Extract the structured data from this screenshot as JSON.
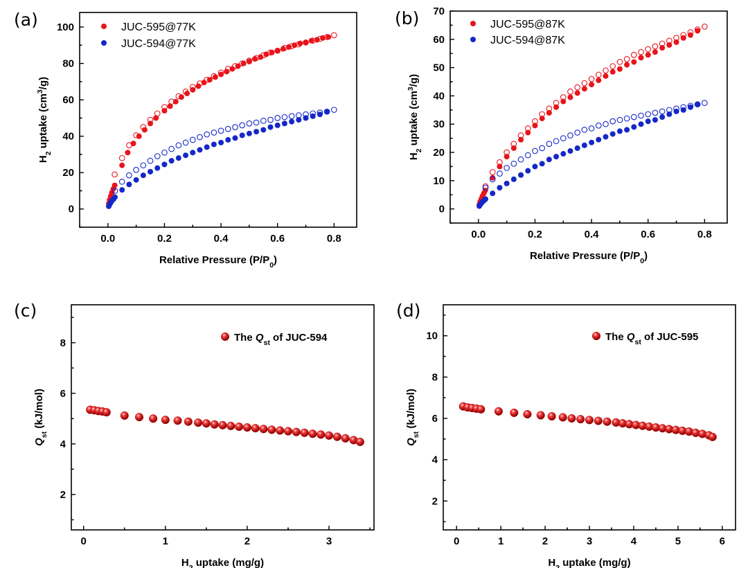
{
  "chart_data": [
    {
      "type": "scatter",
      "panel_label": "(a)",
      "xlabel": "Relative Pressure (P/P0)",
      "ylabel": "H2 uptake (cm3/g)",
      "xlim": [
        -0.1,
        0.88
      ],
      "ylim": [
        -10,
        108
      ],
      "xticks": [
        0.0,
        0.2,
        0.4,
        0.6,
        0.8
      ],
      "yticks": [
        0,
        20,
        40,
        60,
        80,
        100
      ],
      "tick_decimals": 1,
      "grid": false,
      "legend_position": "top-left",
      "series": [
        {
          "name": "JUC-595@77K",
          "color": "#e8141c",
          "marker": "filled-circle",
          "x": [
            0.003,
            0.006,
            0.01,
            0.014,
            0.019,
            0.024,
            0.05,
            0.07,
            0.09,
            0.11,
            0.13,
            0.15,
            0.17,
            0.2,
            0.22,
            0.24,
            0.26,
            0.28,
            0.3,
            0.32,
            0.34,
            0.36,
            0.38,
            0.4,
            0.42,
            0.44,
            0.46,
            0.48,
            0.5,
            0.52,
            0.54,
            0.56,
            0.58,
            0.6,
            0.62,
            0.64,
            0.66,
            0.68,
            0.7,
            0.72,
            0.74,
            0.76,
            0.78
          ],
          "y": [
            3,
            5,
            7,
            9,
            11,
            13,
            24,
            31,
            36,
            40,
            43.5,
            47,
            50,
            54,
            56.5,
            59,
            61.5,
            63.5,
            65.5,
            67.5,
            69.5,
            71,
            72.5,
            74,
            75.5,
            77,
            78.5,
            80,
            81,
            82.5,
            83.5,
            85,
            86,
            87,
            88,
            89,
            90,
            91,
            91.5,
            92.5,
            93,
            94,
            94.5
          ]
        },
        {
          "name": "",
          "color": "#e8141c",
          "marker": "open-circle",
          "x": [
            0.024,
            0.05,
            0.075,
            0.1,
            0.125,
            0.15,
            0.175,
            0.2,
            0.225,
            0.25,
            0.275,
            0.3,
            0.325,
            0.35,
            0.375,
            0.4,
            0.425,
            0.45,
            0.475,
            0.5,
            0.525,
            0.55,
            0.575,
            0.6,
            0.625,
            0.65,
            0.675,
            0.7,
            0.725,
            0.75,
            0.775,
            0.8
          ],
          "y": [
            19,
            28,
            35,
            40.5,
            45,
            49,
            52.5,
            56,
            59,
            62,
            64.5,
            67,
            69,
            71,
            73,
            75,
            77,
            78.5,
            80,
            81.5,
            83,
            84.5,
            86,
            87,
            88.5,
            89.5,
            90.5,
            91.5,
            92.5,
            93.5,
            94.5,
            95.5
          ]
        },
        {
          "name": "JUC-594@77K",
          "color": "#1428c8",
          "marker": "filled-circle",
          "x": [
            0.003,
            0.006,
            0.01,
            0.014,
            0.02,
            0.025,
            0.05,
            0.075,
            0.1,
            0.125,
            0.15,
            0.175,
            0.2,
            0.225,
            0.25,
            0.275,
            0.3,
            0.325,
            0.35,
            0.375,
            0.4,
            0.425,
            0.45,
            0.475,
            0.5,
            0.525,
            0.55,
            0.575,
            0.6,
            0.625,
            0.65,
            0.675,
            0.7,
            0.725,
            0.75,
            0.775
          ],
          "y": [
            1.5,
            2.5,
            3.5,
            4.5,
            5.5,
            6.5,
            10.5,
            13.5,
            16,
            18.5,
            20.5,
            22.5,
            24.5,
            26.5,
            28,
            29.5,
            31,
            32.5,
            34,
            35.5,
            36.5,
            38,
            39,
            40.5,
            41.5,
            42.5,
            43.5,
            45,
            46,
            47,
            48,
            49,
            50,
            51,
            52,
            53.5
          ]
        },
        {
          "name": "",
          "color": "#1428c8",
          "marker": "open-circle",
          "x": [
            0.025,
            0.05,
            0.075,
            0.1,
            0.125,
            0.15,
            0.175,
            0.2,
            0.225,
            0.25,
            0.275,
            0.3,
            0.325,
            0.35,
            0.375,
            0.4,
            0.425,
            0.45,
            0.475,
            0.5,
            0.525,
            0.55,
            0.575,
            0.6,
            0.625,
            0.65,
            0.675,
            0.7,
            0.725,
            0.75,
            0.775,
            0.8
          ],
          "y": [
            10,
            15,
            18.5,
            21.5,
            24,
            26.5,
            29,
            31,
            33,
            35,
            36.5,
            38,
            39.5,
            41,
            42,
            43,
            44,
            45,
            46,
            47,
            47.5,
            48.5,
            49,
            50,
            50.5,
            51,
            51.5,
            52,
            52.5,
            53,
            53.5,
            54.5
          ]
        }
      ]
    },
    {
      "type": "scatter",
      "panel_label": "(b)",
      "xlabel": "Relative Pressure (P/P0)",
      "ylabel": "H2 uptake (cm3/g)",
      "xlim": [
        -0.1,
        0.88
      ],
      "ylim": [
        -5,
        70
      ],
      "xticks": [
        0.0,
        0.2,
        0.4,
        0.6,
        0.8
      ],
      "yticks": [
        0,
        10,
        20,
        30,
        40,
        50,
        60,
        70
      ],
      "tick_decimals": 1,
      "grid": false,
      "legend_position": "top-left",
      "series": [
        {
          "name": "JUC-595@87K",
          "color": "#e8141c",
          "marker": "filled-circle",
          "x": [
            0.003,
            0.006,
            0.01,
            0.014,
            0.019,
            0.024,
            0.05,
            0.075,
            0.1,
            0.125,
            0.15,
            0.175,
            0.2,
            0.225,
            0.25,
            0.275,
            0.3,
            0.325,
            0.35,
            0.375,
            0.4,
            0.425,
            0.45,
            0.475,
            0.5,
            0.525,
            0.55,
            0.575,
            0.6,
            0.625,
            0.65,
            0.675,
            0.7,
            0.725,
            0.75,
            0.775
          ],
          "y": [
            1.5,
            2.5,
            3.5,
            4.5,
            5.5,
            6.5,
            11,
            15,
            18.5,
            21.5,
            24.5,
            27,
            29.5,
            32,
            34,
            36,
            38,
            39.5,
            41,
            42.5,
            44,
            45.5,
            47,
            48.5,
            49.5,
            51,
            52,
            53.5,
            54.5,
            55.5,
            57,
            58,
            59,
            60.5,
            61.5,
            63
          ]
        },
        {
          "name": "",
          "color": "#e8141c",
          "marker": "open-circle",
          "x": [
            0.025,
            0.05,
            0.075,
            0.1,
            0.125,
            0.15,
            0.175,
            0.2,
            0.225,
            0.25,
            0.275,
            0.3,
            0.325,
            0.35,
            0.375,
            0.4,
            0.425,
            0.45,
            0.475,
            0.5,
            0.525,
            0.55,
            0.575,
            0.6,
            0.625,
            0.65,
            0.675,
            0.7,
            0.725,
            0.75,
            0.775,
            0.8
          ],
          "y": [
            8,
            13,
            16.5,
            20,
            23,
            26,
            28.5,
            31,
            33.5,
            35.5,
            37.5,
            39.5,
            41.5,
            43,
            44.5,
            46,
            47.5,
            49,
            50.5,
            52,
            53,
            54.5,
            55.5,
            56.5,
            57.5,
            58.5,
            59.5,
            60.5,
            61.5,
            62.5,
            63.5,
            64.5
          ]
        },
        {
          "name": "JUC-594@87K",
          "color": "#1428c8",
          "marker": "filled-circle",
          "x": [
            0.003,
            0.006,
            0.01,
            0.014,
            0.02,
            0.025,
            0.05,
            0.075,
            0.1,
            0.125,
            0.15,
            0.175,
            0.2,
            0.225,
            0.25,
            0.275,
            0.3,
            0.325,
            0.35,
            0.375,
            0.4,
            0.425,
            0.45,
            0.475,
            0.5,
            0.525,
            0.55,
            0.575,
            0.6,
            0.625,
            0.65,
            0.675,
            0.7,
            0.725,
            0.75,
            0.775
          ],
          "y": [
            1,
            1.5,
            2,
            2.5,
            3,
            3.5,
            5.5,
            7.5,
            9,
            10.5,
            12,
            13.5,
            15,
            16,
            17.5,
            18.5,
            19.5,
            20.5,
            21.5,
            22.5,
            23.5,
            24.5,
            25.5,
            26.5,
            27.5,
            28,
            29,
            30,
            31,
            31.5,
            32.5,
            33.5,
            34.5,
            35,
            36,
            37
          ]
        },
        {
          "name": "",
          "color": "#1428c8",
          "marker": "open-circle",
          "x": [
            0.025,
            0.05,
            0.075,
            0.1,
            0.125,
            0.15,
            0.175,
            0.2,
            0.225,
            0.25,
            0.275,
            0.3,
            0.325,
            0.35,
            0.375,
            0.4,
            0.425,
            0.45,
            0.475,
            0.5,
            0.525,
            0.55,
            0.575,
            0.6,
            0.625,
            0.65,
            0.675,
            0.7,
            0.725,
            0.75,
            0.775,
            0.8
          ],
          "y": [
            7.5,
            10.5,
            12.5,
            14.5,
            16,
            17.5,
            19,
            20.5,
            21.5,
            23,
            24,
            25,
            26,
            27,
            28,
            28.5,
            29.5,
            30,
            31,
            31.5,
            32,
            32.5,
            33,
            33.5,
            34,
            34.5,
            35,
            35.5,
            36,
            36.5,
            37,
            37.5
          ]
        }
      ]
    },
    {
      "type": "scatter",
      "panel_label": "(c)",
      "xlabel": "H2 uptake (mg/g)",
      "ylabel": "Qst (kJ/mol)",
      "xlim": [
        -0.15,
        3.55
      ],
      "ylim": [
        0.6,
        9.5
      ],
      "xticks": [
        0,
        1,
        2,
        3
      ],
      "yticks": [
        2,
        4,
        6,
        8
      ],
      "tick_decimals": 0,
      "grid": false,
      "legend_position": "top-right",
      "series": [
        {
          "name": "The Qst of JUC-594",
          "color": "#e8141c",
          "marker": "sphere",
          "x": [
            0.08,
            0.13,
            0.18,
            0.23,
            0.28,
            0.5,
            0.68,
            0.85,
            1.0,
            1.15,
            1.28,
            1.4,
            1.5,
            1.6,
            1.7,
            1.8,
            1.9,
            2.0,
            2.1,
            2.2,
            2.3,
            2.4,
            2.5,
            2.6,
            2.7,
            2.8,
            2.9,
            3.0,
            3.1,
            3.2,
            3.3,
            3.38
          ],
          "y": [
            5.35,
            5.33,
            5.3,
            5.28,
            5.25,
            5.12,
            5.06,
            5.0,
            4.95,
            4.92,
            4.88,
            4.84,
            4.81,
            4.77,
            4.74,
            4.71,
            4.68,
            4.65,
            4.62,
            4.59,
            4.56,
            4.53,
            4.5,
            4.47,
            4.44,
            4.4,
            4.37,
            4.33,
            4.28,
            4.22,
            4.15,
            4.08
          ]
        }
      ]
    },
    {
      "type": "scatter",
      "panel_label": "(d)",
      "xlabel": "H2 uptake (mg/g)",
      "ylabel": "Qst (kJ/mol)",
      "xlim": [
        -0.3,
        6.3
      ],
      "ylim": [
        0.6,
        11.5
      ],
      "xticks": [
        0,
        1,
        2,
        3,
        4,
        5,
        6
      ],
      "yticks": [
        2,
        4,
        6,
        8,
        10
      ],
      "tick_decimals": 0,
      "grid": false,
      "legend_position": "top-right",
      "series": [
        {
          "name": "The Qst of JUC-595",
          "color": "#e8141c",
          "marker": "sphere",
          "x": [
            0.15,
            0.25,
            0.35,
            0.45,
            0.55,
            0.95,
            1.3,
            1.6,
            1.9,
            2.15,
            2.4,
            2.6,
            2.8,
            3.0,
            3.2,
            3.4,
            3.6,
            3.75,
            3.9,
            4.05,
            4.2,
            4.35,
            4.5,
            4.65,
            4.8,
            4.95,
            5.1,
            5.25,
            5.4,
            5.55,
            5.7,
            5.78
          ],
          "y": [
            6.58,
            6.53,
            6.5,
            6.47,
            6.44,
            6.34,
            6.27,
            6.2,
            6.15,
            6.1,
            6.05,
            6.0,
            5.96,
            5.92,
            5.88,
            5.84,
            5.8,
            5.76,
            5.72,
            5.68,
            5.64,
            5.6,
            5.56,
            5.52,
            5.48,
            5.44,
            5.4,
            5.36,
            5.3,
            5.25,
            5.18,
            5.1
          ]
        }
      ]
    }
  ]
}
